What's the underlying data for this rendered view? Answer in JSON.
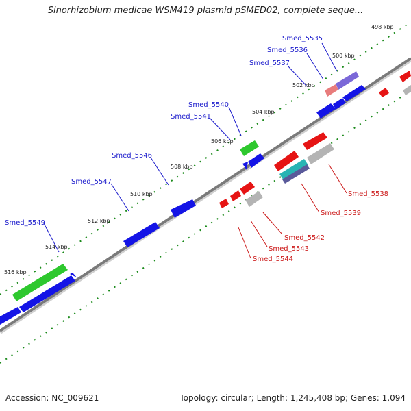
{
  "title": "Sinorhizobium medicae WSM419 plasmid pSMED02, complete seque...",
  "footer": {
    "accession": "Accession: NC_009621",
    "summary": "Topology: circular; Length: 1,245,408 bp; Genes: 1,094"
  },
  "colors": {
    "forward": "#1414e6",
    "reverse": "#e61414",
    "green": "#2ec82e",
    "grey": "#b4b4b4",
    "teal": "#28b4b4",
    "purple": "#7b68d8",
    "pink": "#e87c7c",
    "tick": "#1a8a1a",
    "backbone": "#7a7a7a",
    "label_forward": "#1a1acc",
    "label_reverse": "#cc1a1a"
  },
  "ruler": {
    "ticks": [
      "498 kbp",
      "500 kbp",
      "502 kbp",
      "504 kbp",
      "506 kbp",
      "508 kbp",
      "510 kbp",
      "512 kbp",
      "514 kbp",
      "516 kbp"
    ]
  },
  "genes": {
    "forward_labels": [
      "Smed_5535",
      "Smed_5536",
      "Smed_5537",
      "Smed_5540",
      "Smed_5541",
      "Smed_5546",
      "Smed_5547",
      "Smed_5549"
    ],
    "reverse_labels": [
      "Smed_5538",
      "Smed_5539",
      "Smed_5542",
      "Smed_5543",
      "Smed_5544"
    ]
  }
}
